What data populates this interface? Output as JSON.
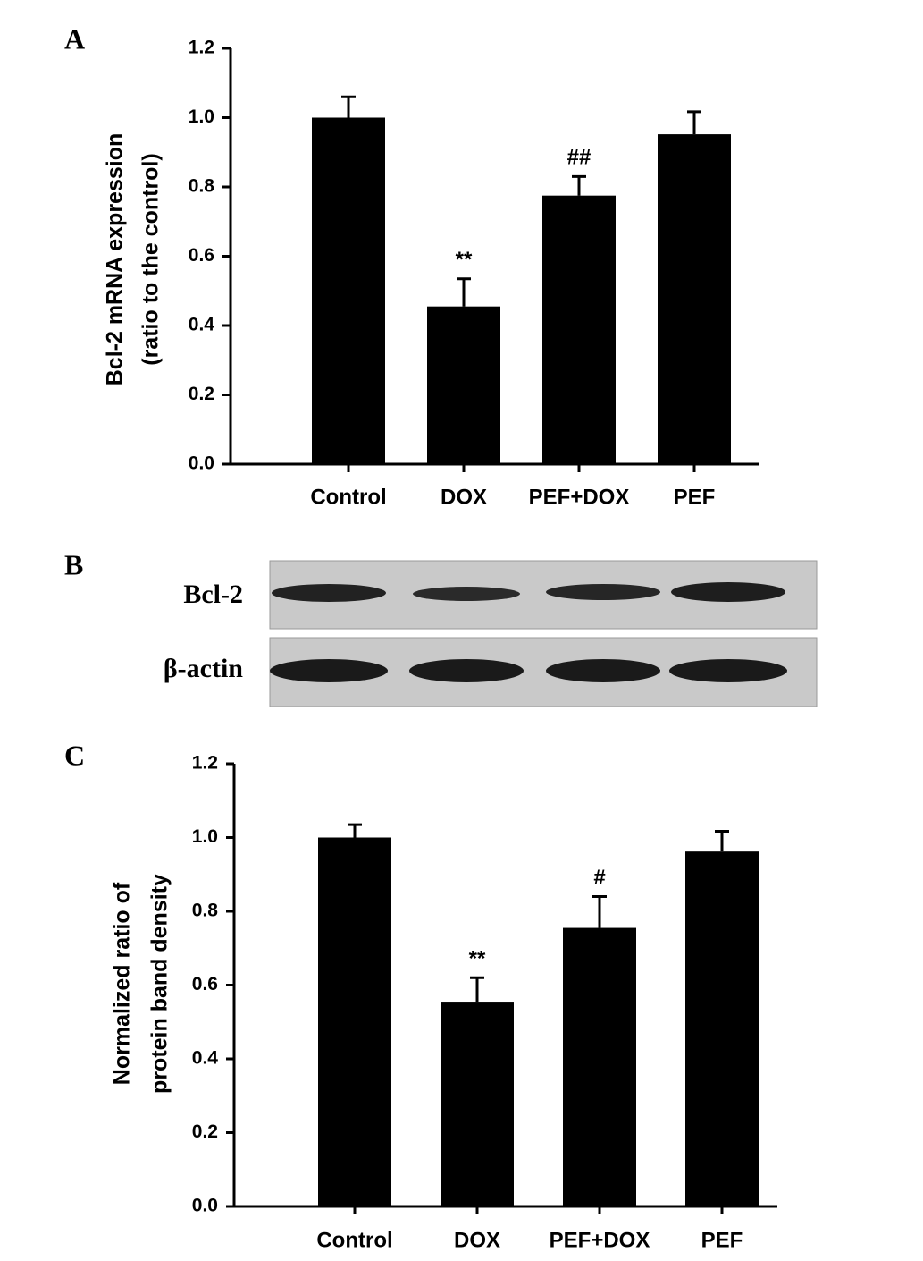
{
  "panel_labels": [
    "A",
    "B",
    "C"
  ],
  "blot": {
    "rows": [
      "Bcl-2",
      "β-actin"
    ]
  },
  "chart_data": [
    {
      "type": "bar",
      "ylabel": [
        "Bcl-2 mRNA expression",
        "(ratio to the control)"
      ],
      "categories": [
        "Control",
        "DOX",
        "PEF+DOX",
        "PEF"
      ],
      "values": [
        1.0,
        0.455,
        0.775,
        0.952
      ],
      "errors": [
        0.06,
        0.08,
        0.055,
        0.065
      ],
      "color": "#000000",
      "annotations": [
        {
          "category": "DOX",
          "text": "**"
        },
        {
          "category": "PEF+DOX",
          "text": "##"
        }
      ],
      "ylim": [
        0,
        1.2
      ],
      "yticks": [
        {
          "value": 0,
          "label": "0.0"
        },
        0.2,
        0.4,
        0.6,
        0.8,
        {
          "value": 1,
          "label": "1.0"
        },
        1.2
      ]
    },
    {
      "type": "bar",
      "ylabel": [
        "Normalized ratio of",
        "protein band density"
      ],
      "categories": [
        "Control",
        "DOX",
        "PEF+DOX",
        "PEF"
      ],
      "values": [
        1.0,
        0.555,
        0.755,
        0.962
      ],
      "errors": [
        0.035,
        0.065,
        0.085,
        0.055
      ],
      "color": "#000000",
      "annotations": [
        {
          "category": "DOX",
          "text": "**"
        },
        {
          "category": "PEF+DOX",
          "text": "#"
        }
      ],
      "ylim": [
        0,
        1.2
      ],
      "yticks": [
        {
          "value": 0,
          "label": "0.0"
        },
        0.2,
        0.4,
        0.6,
        0.8,
        {
          "value": 1,
          "label": "1.0"
        },
        1.2
      ]
    }
  ]
}
